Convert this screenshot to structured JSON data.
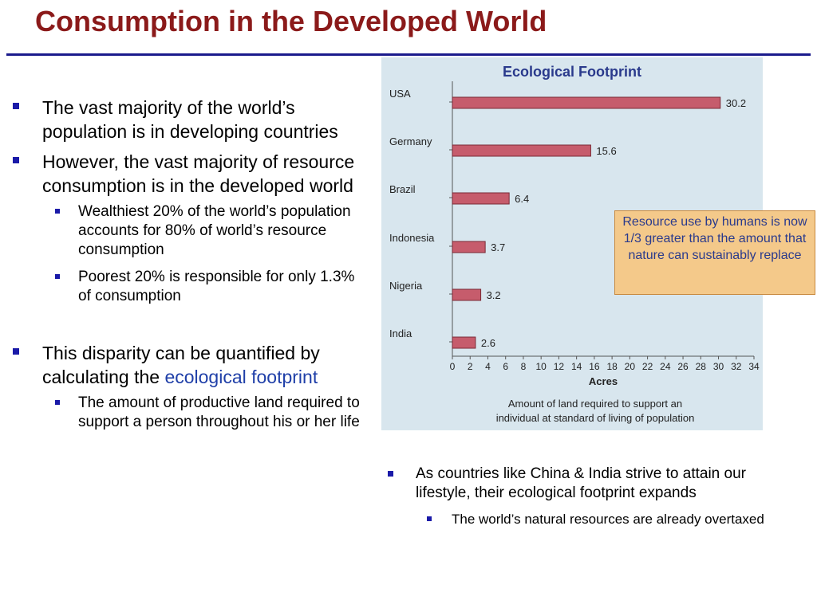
{
  "slide": {
    "title": "Consumption in the Developed World"
  },
  "left_bullets": [
    {
      "text": "The vast majority of the world’s population is in developing countries"
    },
    {
      "text": "However, the vast majority of resource consumption is in the developed world",
      "sub": [
        "Wealthiest 20% of the world’s population accounts for 80% of world’s resource consumption",
        "Poorest 20% is responsible for only 1.3% of consumption"
      ]
    },
    {
      "text_before": "This disparity can be quantified by calculating the ",
      "link_text": "ecological footprint",
      "sub": [
        "The amount of productive land required to support a person throughout his or her life"
      ]
    }
  ],
  "right_bullets": {
    "main": "As countries like China & India strive to attain our lifestyle, their ecological footprint expands",
    "sub": "The world’s natural resources are already overtaxed"
  },
  "callout": "Resource use by humans is now 1/3 greater than the amount that nature can sustainably replace",
  "colors": {
    "title": "#8b1a1a",
    "rule": "#1a1a8c",
    "bullet": "#1a1aa8",
    "link": "#1f3fa8",
    "bar_fill": "#c65c6c",
    "chart_background": "#d8e6ee",
    "callout_background": "#f4c98a"
  },
  "chart_data": {
    "type": "bar",
    "orientation": "horizontal",
    "title": "Ecological Footprint",
    "categories": [
      "USA",
      "Germany",
      "Brazil",
      "Indonesia",
      "Nigeria",
      "India"
    ],
    "values": [
      30.2,
      15.6,
      6.4,
      3.7,
      3.2,
      2.6
    ],
    "xlabel": "Acres",
    "caption_lines": [
      "Amount of land required to support an",
      "individual at standard of living of population"
    ],
    "xlim": [
      0,
      34
    ],
    "xticks": [
      0,
      2,
      4,
      6,
      8,
      10,
      12,
      14,
      16,
      18,
      20,
      22,
      24,
      26,
      28,
      30,
      32,
      34
    ],
    "grid": false
  }
}
